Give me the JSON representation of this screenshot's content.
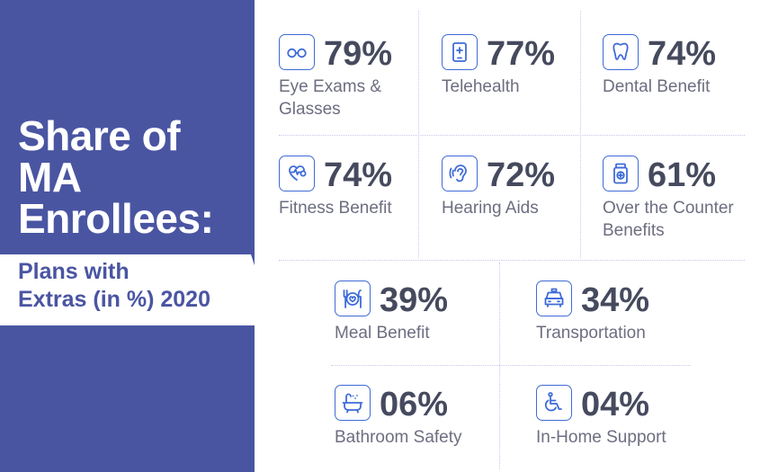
{
  "title": {
    "line1": "Share of",
    "line2": "MA",
    "line3": "Enrollees:"
  },
  "subtitle": {
    "line1": "Plans with",
    "line2": "Extras (in %) 2020"
  },
  "colors": {
    "panel": "#4a55a2",
    "icon_stroke": "#3f6bd8",
    "value_text": "#464a5e",
    "label_text": "#6c6e80"
  },
  "chart_data": {
    "type": "table",
    "title": "Share of MA Enrollees: Plans with Extras (in %) 2020",
    "unit": "%",
    "items": [
      {
        "label_lines": [
          "Eye Exams &",
          "Glasses"
        ],
        "value": 79,
        "display": "79%",
        "icon": "glasses-icon"
      },
      {
        "label_lines": [
          "Telehealth"
        ],
        "value": 77,
        "display": "77%",
        "icon": "telehealth-phone-icon"
      },
      {
        "label_lines": [
          "Dental Benefit"
        ],
        "value": 74,
        "display": "74%",
        "icon": "tooth-icon"
      },
      {
        "label_lines": [
          "Fitness Benefit"
        ],
        "value": 74,
        "display": "74%",
        "icon": "fitness-heart-icon"
      },
      {
        "label_lines": [
          "Hearing Aids"
        ],
        "value": 72,
        "display": "72%",
        "icon": "ear-icon"
      },
      {
        "label_lines": [
          "Over the Counter",
          "Benefits"
        ],
        "value": 61,
        "display": "61%",
        "icon": "medicine-bottle-icon"
      },
      {
        "label_lines": [
          "Meal Benefit"
        ],
        "value": 39,
        "display": "39%",
        "icon": "meal-plate-icon"
      },
      {
        "label_lines": [
          "Transportation"
        ],
        "value": 34,
        "display": "34%",
        "icon": "taxi-icon"
      },
      {
        "label_lines": [
          "Bathroom Safety"
        ],
        "value": 6,
        "display": "06%",
        "icon": "bathtub-icon"
      },
      {
        "label_lines": [
          "In-Home Support"
        ],
        "value": 4,
        "display": "04%",
        "icon": "wheelchair-icon"
      }
    ]
  }
}
